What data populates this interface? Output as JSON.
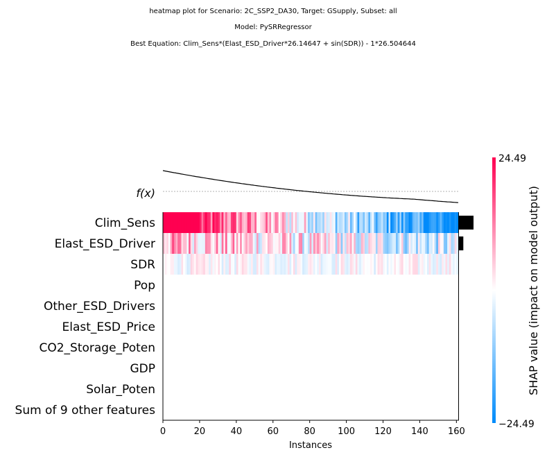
{
  "chart_data": {
    "type": "heatmap",
    "title_lines": [
      "heatmap plot for Scenario: 2C_SSP2_DA30, Target: GSupply, Subset: all",
      "Model: PySRRegressor",
      "Best Equation: Clim_Sens*(Elast_ESD_Driver*26.14647 + sin(SDR)) - 1*26.504644"
    ],
    "xlabel": "Instances",
    "fx_label": "f(x)",
    "x_ticks": [
      0,
      20,
      40,
      60,
      80,
      100,
      120,
      140,
      160
    ],
    "xlim": [
      0,
      161
    ],
    "n_instances": 161,
    "features": [
      "Clim_Sens",
      "Elast_ESD_Driver",
      "SDR",
      "Pop",
      "Other_ESD_Drivers",
      "Elast_ESD_Price",
      "CO2_Storage_Poten",
      "GDP",
      "Solar_Poten",
      "Sum of 9 other features"
    ],
    "feature_importance": [
      1.0,
      0.3,
      0.0,
      0.0,
      0.0,
      0.0,
      0.0,
      0.0,
      0.0,
      0.0
    ],
    "colorbar": {
      "label": "SHAP value (impact on model output)",
      "max_label": "24.49",
      "min_label": "−24.49",
      "vmin": -24.49,
      "vmax": 24.49,
      "high_color": "#ff0051",
      "low_color": "#008bfb"
    },
    "fx_trend": {
      "start": 1.0,
      "end": -0.45,
      "baseline": 0.0
    }
  }
}
